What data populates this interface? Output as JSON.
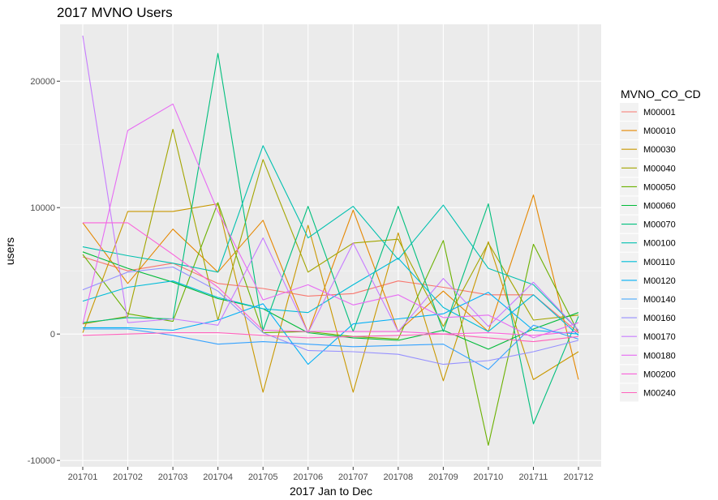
{
  "chart_data": {
    "type": "line",
    "title": "2017 MVNO Users",
    "xlabel": "2017 Jan to Dec",
    "ylabel": "users",
    "categories": [
      "201701",
      "201702",
      "201703",
      "201704",
      "201705",
      "201706",
      "201707",
      "201708",
      "201709",
      "201710",
      "201711",
      "201712"
    ],
    "ylim": [
      -10500,
      24500
    ],
    "yticks": [
      -10000,
      0,
      10000,
      20000
    ],
    "ytick_labels": [
      "-10000",
      "0",
      "10000",
      "20000"
    ],
    "grid": true,
    "legend": {
      "title": "MVNO_CO_CD",
      "position": "right"
    },
    "series": [
      {
        "name": "M00001",
        "color": "#F8766D",
        "values": [
          6100,
          5000,
          5600,
          4000,
          3600,
          3000,
          3200,
          4200,
          3700,
          3100,
          3100,
          100
        ]
      },
      {
        "name": "M00010",
        "color": "#E58700",
        "values": [
          8800,
          4000,
          8300,
          4900,
          9000,
          100,
          9800,
          200,
          3400,
          200,
          11000,
          -3600
        ]
      },
      {
        "name": "M00030",
        "color": "#C99800",
        "values": [
          100,
          9700,
          9700,
          10300,
          -4600,
          8600,
          -4600,
          8000,
          -3700,
          7300,
          -3600,
          -1400
        ]
      },
      {
        "name": "M00040",
        "color": "#A3A500",
        "values": [
          800,
          1400,
          16200,
          1100,
          13800,
          4900,
          7200,
          7500,
          600,
          7200,
          1100,
          1500
        ]
      },
      {
        "name": "M00050",
        "color": "#6BB100",
        "values": [
          6300,
          1600,
          1000,
          10400,
          100,
          200,
          -200,
          -400,
          7400,
          -8800,
          7100,
          100
        ]
      },
      {
        "name": "M00060",
        "color": "#00BA38",
        "values": [
          6500,
          5200,
          4100,
          2800,
          2000,
          100,
          -300,
          -500,
          300,
          -1200,
          400,
          1700
        ]
      },
      {
        "name": "M00070",
        "color": "#00BF7D",
        "values": [
          900,
          1300,
          1200,
          22200,
          300,
          10100,
          200,
          10100,
          200,
          10300,
          -7100,
          1400
        ]
      },
      {
        "name": "M00100",
        "color": "#00C0AF",
        "values": [
          6900,
          6200,
          5600,
          4900,
          14900,
          7600,
          10100,
          5900,
          10200,
          5200,
          3900,
          300
        ]
      },
      {
        "name": "M00110",
        "color": "#00BCD8",
        "values": [
          2600,
          3700,
          4200,
          2900,
          2000,
          1700,
          3900,
          6000,
          2100,
          200,
          3100,
          -100
        ]
      },
      {
        "name": "M00120",
        "color": "#00B0F6",
        "values": [
          500,
          500,
          300,
          1100,
          2400,
          -2400,
          800,
          1200,
          1600,
          3300,
          300,
          0
        ]
      },
      {
        "name": "M00140",
        "color": "#35A2FF",
        "values": [
          400,
          400,
          -100,
          -800,
          -600,
          -800,
          -1000,
          -900,
          -800,
          -2800,
          700,
          -400
        ]
      },
      {
        "name": "M00160",
        "color": "#9590FF",
        "values": [
          3500,
          4900,
          5300,
          3400,
          100,
          -1300,
          -1400,
          -1600,
          -2400,
          -2100,
          -1400,
          -500
        ]
      },
      {
        "name": "M00170",
        "color": "#C77CFF",
        "values": [
          23600,
          900,
          1200,
          700,
          7600,
          100,
          7200,
          200,
          4400,
          600,
          4100,
          300
        ]
      },
      {
        "name": "M00180",
        "color": "#E76BF3",
        "values": [
          800,
          16100,
          18200,
          9700,
          2700,
          3900,
          2300,
          3100,
          1300,
          1500,
          -300,
          900
        ]
      },
      {
        "name": "M00200",
        "color": "#FA62DB",
        "values": [
          8800,
          8800,
          6300,
          3700,
          300,
          200,
          200,
          200,
          0,
          100,
          -100,
          200
        ]
      },
      {
        "name": "M00240",
        "color": "#FF62BC",
        "values": [
          -100,
          0,
          100,
          100,
          -100,
          -300,
          -200,
          -100,
          0,
          -300,
          -600,
          -200
        ]
      }
    ]
  }
}
